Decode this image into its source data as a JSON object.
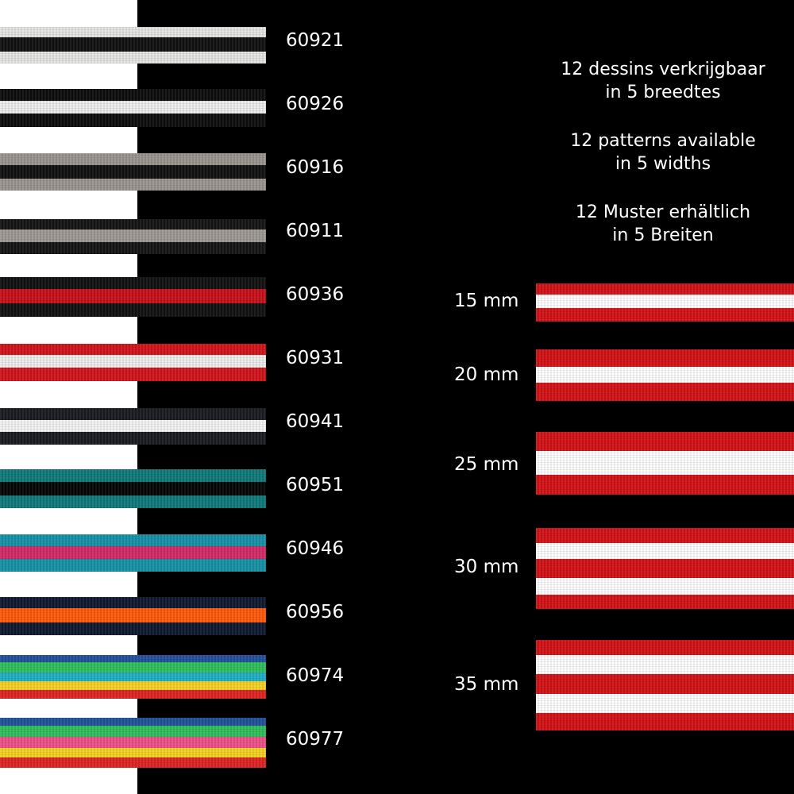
{
  "info": [
    {
      "line1": "12 dessins verkrijgbaar",
      "line2": "in 5 breedtes"
    },
    {
      "line1": "12 patterns available",
      "line2": "in 5 widths"
    },
    {
      "line1": "12 Muster erhältlich",
      "line2": "in 5 Breiten"
    }
  ],
  "patterns": [
    {
      "code": "60921",
      "stripes": [
        "#e6e6e4",
        "#111111",
        "#e6e6e4"
      ]
    },
    {
      "code": "60926",
      "stripes": [
        "#0d0d0d",
        "#eeeeee",
        "#0d0d0d"
      ]
    },
    {
      "code": "60916",
      "stripes": [
        "#9a958e",
        "#111111",
        "#9a958e"
      ]
    },
    {
      "code": "60911",
      "stripes": [
        "#141414",
        "#9e9a93",
        "#141414"
      ]
    },
    {
      "code": "60936",
      "stripes": [
        "#111111",
        "#c8101a",
        "#111111"
      ]
    },
    {
      "code": "60931",
      "stripes": [
        "#d3131b",
        "#eeeeee",
        "#d3131b"
      ]
    },
    {
      "code": "60941",
      "stripes": [
        "#1a1c22",
        "#f4f4f4",
        "#1a1c22"
      ]
    },
    {
      "code": "60951",
      "stripes": [
        "#107a7a",
        "#050505",
        "#107a7a"
      ]
    },
    {
      "code": "60946",
      "stripes": [
        "#1592a8",
        "#d42a68",
        "#1592a8"
      ]
    },
    {
      "code": "60956",
      "stripes": [
        "#101830",
        "#ff5a0a",
        "#101830"
      ]
    },
    {
      "code": "60974",
      "stripes": [
        "#21529e",
        "#2fbf5a",
        "#1fb0c8",
        "#f5d421",
        "#e02424"
      ]
    },
    {
      "code": "60977",
      "stripes": [
        "#21529e",
        "#2fbf5a",
        "#f0508a",
        "#f5d421",
        "#e02424"
      ]
    }
  ],
  "widths": [
    {
      "label": "15 mm",
      "stripes": [
        "#d41216",
        "#ffffff",
        "#d41216"
      ]
    },
    {
      "label": "20 mm",
      "stripes": [
        "#d41216",
        "#ffffff",
        "#d41216"
      ]
    },
    {
      "label": "25 mm",
      "stripes": [
        "#d41216",
        "#ffffff",
        "#d41216"
      ]
    },
    {
      "label": "30 mm",
      "stripes": [
        "#d41216",
        "#ffffff",
        "#d41216",
        "#ffffff",
        "#d41216"
      ]
    },
    {
      "label": "35 mm",
      "stripes": [
        "#d41216",
        "#ffffff",
        "#d41216",
        "#ffffff",
        "#d41216"
      ]
    }
  ]
}
